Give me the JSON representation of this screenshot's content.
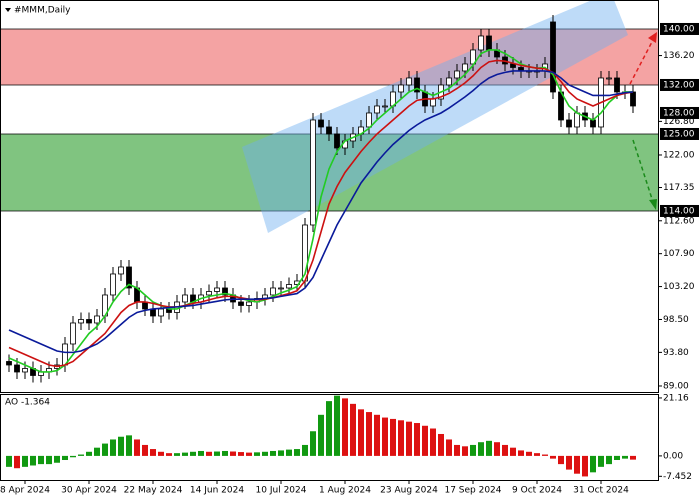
{
  "chart_data": [
    {
      "type": "candlestick",
      "title": "#MMM,Daily",
      "categories": [
        null,
        null,
        "8 Apr 2024",
        null,
        null,
        null,
        null,
        null,
        null,
        null,
        "30 Apr 2024",
        null,
        null,
        null,
        null,
        null,
        null,
        null,
        "22 May 2024",
        null,
        null,
        null,
        null,
        null,
        null,
        null,
        "14 Jun 2024",
        null,
        null,
        null,
        null,
        null,
        null,
        null,
        "10 Jul 2024",
        null,
        null,
        null,
        null,
        null,
        null,
        null,
        "1 Aug 2024",
        null,
        null,
        null,
        null,
        null,
        null,
        null,
        "23 Aug 2024",
        null,
        null,
        null,
        null,
        null,
        null,
        null,
        "17 Sep 2024",
        null,
        null,
        null,
        null,
        null,
        null,
        null,
        "9 Oct 2024",
        null,
        null,
        null,
        null,
        null,
        null,
        null,
        "31 Oct 2024",
        null,
        null,
        null,
        null
      ],
      "open": [
        92.5,
        92,
        91,
        91.5,
        90.5,
        91,
        91.5,
        92,
        95,
        98,
        98.5,
        98,
        99,
        102,
        105,
        106,
        103,
        101,
        100,
        99,
        100,
        99.5,
        101,
        102,
        101,
        102,
        102.5,
        103,
        102,
        101,
        100.5,
        101,
        101.5,
        102,
        103,
        103,
        103.5,
        104,
        112,
        127,
        126,
        125,
        123,
        124,
        125,
        126,
        128,
        129,
        129,
        131,
        132,
        133,
        131,
        129,
        130,
        132,
        133,
        134,
        135,
        137,
        139,
        137,
        136,
        135,
        134.5,
        134,
        134,
        134,
        141,
        131,
        127,
        126,
        128,
        127,
        126,
        133,
        133,
        131,
        131
      ],
      "high": [
        93.5,
        93,
        92.5,
        92.5,
        92,
        92.5,
        93,
        96,
        99,
        99.5,
        99.5,
        100,
        103,
        106,
        107,
        107,
        104,
        102,
        101,
        101,
        101,
        102,
        103,
        103,
        103,
        103.5,
        104,
        104,
        103,
        102,
        102,
        102.5,
        103,
        104,
        104,
        104.5,
        105,
        113,
        128,
        128,
        127,
        126,
        125,
        126,
        127,
        129,
        130,
        130,
        132,
        133,
        134,
        134,
        132,
        131,
        133,
        134,
        135,
        136,
        138,
        140,
        140,
        138,
        137,
        136,
        135.5,
        135,
        135,
        136,
        142,
        132,
        128,
        129,
        129,
        128,
        134,
        134,
        134,
        132,
        132
      ],
      "low": [
        91,
        90,
        90,
        89.5,
        89.5,
        90,
        90.5,
        91,
        94,
        97,
        97,
        97,
        98,
        101,
        104,
        102,
        100,
        99,
        98,
        98,
        98.5,
        98.5,
        100,
        100,
        100,
        101,
        101.5,
        101,
        100,
        99.5,
        99.5,
        100,
        100.5,
        101,
        102,
        102,
        102.5,
        103,
        111,
        125,
        124,
        122,
        122,
        123,
        124,
        125,
        127,
        128,
        128,
        130,
        131,
        130,
        128,
        128,
        129,
        131,
        132,
        133,
        134,
        136,
        136,
        135,
        134,
        133.5,
        133,
        133,
        133,
        133,
        130,
        126,
        125,
        125,
        126,
        125,
        125,
        132,
        130,
        130,
        128
      ],
      "close": [
        92,
        91,
        91.5,
        90.5,
        91,
        91.5,
        92,
        95,
        98,
        98.5,
        98,
        99,
        102,
        105,
        106,
        103,
        101,
        100,
        99,
        100,
        99.5,
        101,
        102,
        101,
        102,
        102.5,
        103,
        102,
        101,
        100.5,
        101,
        101.5,
        102,
        103,
        103,
        103.5,
        104,
        112,
        127,
        126,
        125,
        123,
        124,
        125,
        126,
        128,
        129,
        129,
        131,
        132,
        133,
        131,
        129,
        130,
        132,
        133,
        134,
        135,
        137,
        139,
        137,
        136,
        135,
        134.5,
        134,
        134,
        134,
        135,
        131,
        127,
        126,
        128,
        127,
        126,
        133,
        133,
        131,
        131,
        129
      ],
      "up_color": "#ffffff",
      "down_color": "#000000",
      "lines": [
        {
          "color": "#22cc22",
          "values": [
            93,
            92.5,
            92,
            91.5,
            91,
            91,
            91.2,
            92,
            93.5,
            95,
            96.5,
            97.5,
            99,
            101,
            102.5,
            103.5,
            103,
            102,
            101,
            100.5,
            100,
            100,
            100.5,
            101,
            101.5,
            101.8,
            102,
            102.2,
            102,
            101.5,
            101.2,
            101,
            101.3,
            101.8,
            102.3,
            102.7,
            103.2,
            105,
            110,
            116,
            120,
            122.5,
            124,
            124.5,
            125,
            125.8,
            127,
            128,
            129,
            130,
            131,
            131.5,
            131,
            130.5,
            131,
            131.5,
            132.5,
            133.5,
            134.8,
            136.5,
            137,
            137,
            136.5,
            135.8,
            135,
            134.6,
            134.4,
            134.5,
            133.5,
            131,
            129,
            128,
            127.5,
            127,
            128,
            129.5,
            130.5,
            131,
            131
          ]
        },
        {
          "color": "#cc1111",
          "values": [
            94.5,
            94,
            93.5,
            93,
            92.5,
            92,
            91.8,
            92,
            92.5,
            93.5,
            94.5,
            95.5,
            96.5,
            98,
            99.5,
            100.5,
            101,
            101,
            100.8,
            100.5,
            100.3,
            100.3,
            100.5,
            100.8,
            101,
            101.3,
            101.6,
            101.8,
            101.8,
            101.6,
            101.4,
            101.3,
            101.4,
            101.6,
            101.9,
            102.2,
            102.6,
            104,
            107,
            111,
            115,
            117.5,
            119.5,
            121,
            122.5,
            123.8,
            125,
            126,
            127,
            128,
            129,
            129.8,
            130,
            130,
            130.3,
            130.8,
            131.5,
            132.3,
            133.3,
            134.5,
            135.3,
            135.5,
            135.4,
            135.1,
            134.8,
            134.6,
            134.4,
            134.3,
            133.8,
            132.5,
            131,
            130,
            129.5,
            129,
            129.5,
            130,
            130.5,
            130.8,
            131
          ]
        },
        {
          "color": "#0a1a9a",
          "values": [
            97,
            96.5,
            96,
            95.5,
            95,
            94.5,
            94,
            93.8,
            93.8,
            94,
            94.5,
            95,
            95.8,
            96.8,
            97.8,
            98.8,
            99.5,
            99.8,
            100,
            100.1,
            100.2,
            100.3,
            100.4,
            100.5,
            100.7,
            100.9,
            101.1,
            101.3,
            101.4,
            101.4,
            101.4,
            101.4,
            101.5,
            101.6,
            101.8,
            102,
            102.2,
            103,
            104.5,
            107,
            109.5,
            112,
            114,
            116,
            118,
            119.5,
            121,
            122.3,
            123.5,
            124.5,
            125.5,
            126.3,
            127,
            127.5,
            128,
            128.7,
            129.5,
            130.3,
            131.2,
            132.2,
            133,
            133.5,
            133.8,
            134,
            134,
            134,
            134,
            134,
            133.8,
            133,
            132,
            131.5,
            131,
            130.5,
            130.5,
            130.5,
            130.7,
            130.9,
            131
          ]
        }
      ],
      "zones": [
        {
          "from": 132,
          "to": 140,
          "color": "#f4a3a3"
        },
        {
          "from": 114,
          "to": 125,
          "color": "#80c480"
        }
      ],
      "ylim": [
        88.14,
        144.14
      ],
      "yticks": [
        {
          "value": 89,
          "label": "89.00"
        },
        {
          "value": 93.8,
          "label": "93.80"
        },
        {
          "value": 98.5,
          "label": "98.50"
        },
        {
          "value": 103.2,
          "label": "103.20"
        },
        {
          "value": 107.9,
          "label": "107.90"
        },
        {
          "value": 112.6,
          "label": "112.60"
        },
        {
          "value": 117.35,
          "label": "117.35"
        },
        {
          "value": 122,
          "label": "122.00"
        },
        {
          "value": 126.8,
          "label": "126.80"
        },
        {
          "value": 136.2,
          "label": "136.20"
        }
      ],
      "level_ticks": [
        {
          "value": 140,
          "label": "140.00"
        },
        {
          "value": 132,
          "label": "132.00"
        },
        {
          "value": 128,
          "label": "128.00"
        },
        {
          "value": 125,
          "label": "125.00"
        },
        {
          "value": 114,
          "label": "114.00"
        }
      ]
    },
    {
      "type": "bar",
      "title": "AO -1.364",
      "values": [
        -4,
        -4.5,
        -4,
        -3.5,
        -3,
        -3,
        -2.5,
        -1.5,
        -0.5,
        0.5,
        1.5,
        3,
        4.5,
        6,
        7,
        7.5,
        6,
        4,
        2.5,
        1.5,
        1,
        1,
        1.2,
        1.5,
        1.8,
        1.5,
        1.6,
        1.8,
        1.6,
        1.4,
        1.2,
        1.3,
        1.5,
        1.8,
        2,
        2.3,
        2.5,
        4,
        9,
        15,
        20,
        22,
        21,
        19,
        17,
        16,
        15,
        14,
        13.5,
        13,
        12.5,
        12,
        11,
        10,
        8,
        6,
        4,
        3.5,
        4,
        5,
        5.5,
        5,
        4,
        3,
        2,
        1.5,
        1,
        0.5,
        -1,
        -3,
        -5,
        -6.5,
        -7.5,
        -6,
        -4,
        -3,
        -1.5,
        -1,
        -1.364
      ],
      "up_color": "#119911",
      "down_color": "#dd1111",
      "ylim": [
        -8.8,
        22.6
      ],
      "yticks": [
        21.16,
        {
          "value": 0,
          "label": "0.00"
        },
        -7.452
      ]
    }
  ]
}
